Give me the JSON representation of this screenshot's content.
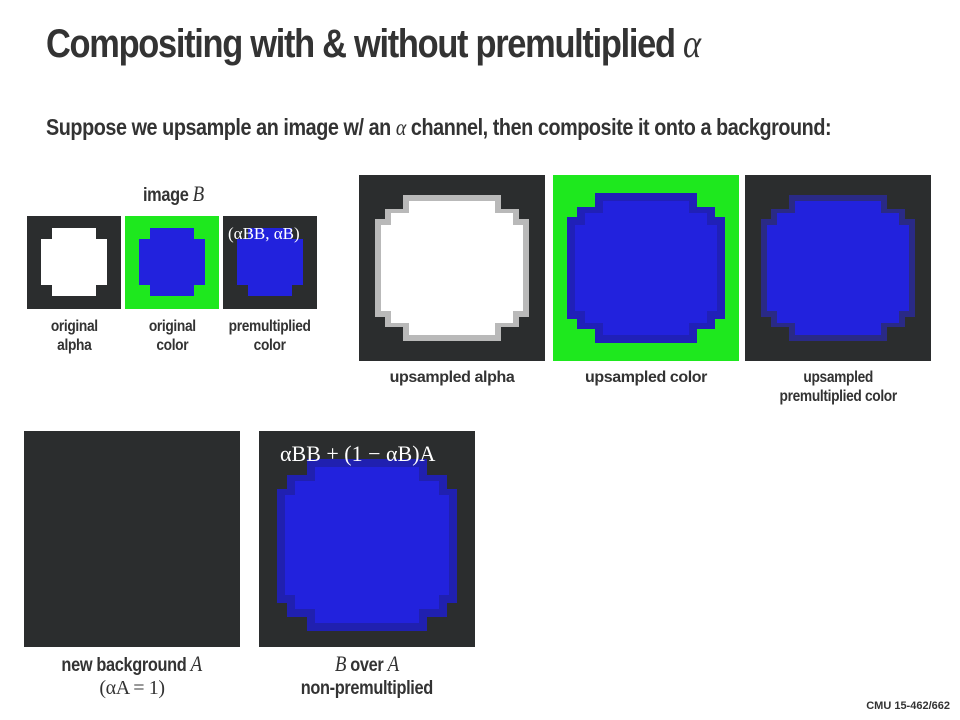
{
  "slide": {
    "title": "Compositing with & without premultiplied",
    "title_symbol": "α",
    "subtitle_before": "Suppose we upsample an image w/ an",
    "subtitle_symbol": "α",
    "subtitle_after": "channel, then composite it onto a background:",
    "footer": "CMU 15-462/662"
  },
  "image_b_heading": {
    "text": "image",
    "symbol": "B"
  },
  "premult_formula": "(αBB, αB)",
  "over_formula": "αBB + (1 − αB)A",
  "captions": {
    "original_alpha": [
      "original",
      "alpha"
    ],
    "original_color": [
      "original",
      "color"
    ],
    "premultiplied_color": [
      "premultiplied",
      "color"
    ],
    "upsampled_alpha": "upsampled alpha",
    "upsampled_color": "upsampled color",
    "upsampled_premultiplied": [
      "upsampled",
      "premultiplied color"
    ],
    "new_background": {
      "text": "new background",
      "symbol": "A",
      "note": "(αA = 1)"
    },
    "b_over_a": {
      "symbol_b": "B",
      "text": "over",
      "symbol_a": "A",
      "line2": "non-premultiplied"
    }
  },
  "colors": {
    "dark_background": "#2b2d2e",
    "green": "#1ee81e",
    "blue": "#2222dd",
    "white": "#ffffff",
    "text": "#333333"
  }
}
